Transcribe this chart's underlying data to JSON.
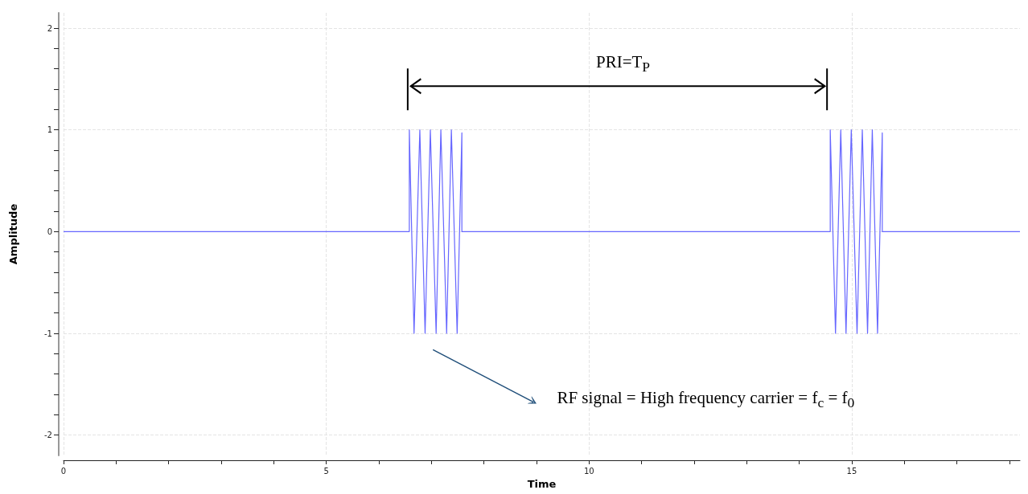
{
  "chart_data": {
    "type": "line",
    "xlabel": "Time",
    "ylabel": "Amplitude",
    "xlim": [
      0,
      18.2
    ],
    "xticks": [
      0,
      {
        "value": 1,
        "label": null
      },
      {
        "value": 2,
        "label": null
      },
      {
        "value": 3,
        "label": null
      },
      {
        "value": 4,
        "label": null
      },
      5,
      {
        "value": 6,
        "label": null
      },
      {
        "value": 7,
        "label": null
      },
      {
        "value": 8,
        "label": null
      },
      {
        "value": 9,
        "label": null
      },
      10,
      {
        "value": 11,
        "label": null
      },
      {
        "value": 12,
        "label": null
      },
      {
        "value": 13,
        "label": null
      },
      {
        "value": 14,
        "label": null
      },
      15,
      {
        "value": 16,
        "label": null
      },
      {
        "value": 17,
        "label": null
      },
      {
        "value": 18,
        "label": null
      }
    ],
    "ylim": [
      -2.2,
      2.15
    ],
    "yticks": [
      -2,
      {
        "value": -1.8,
        "label": null
      },
      {
        "value": -1.6,
        "label": null
      },
      {
        "value": -1.4,
        "label": null
      },
      {
        "value": -1.2,
        "label": null
      },
      -1,
      {
        "value": -0.8,
        "label": null
      },
      {
        "value": -0.6,
        "label": null
      },
      {
        "value": -0.4,
        "label": null
      },
      {
        "value": -0.2,
        "label": null
      },
      0,
      {
        "value": 0.2,
        "label": null
      },
      {
        "value": 0.4,
        "label": null
      },
      {
        "value": 0.6,
        "label": null
      },
      {
        "value": 0.8,
        "label": null
      },
      1,
      {
        "value": 1.2,
        "label": null
      },
      {
        "value": 1.4,
        "label": null
      },
      {
        "value": 1.6,
        "label": null
      },
      {
        "value": 1.8,
        "label": null
      },
      2
    ],
    "grid": true,
    "marker": "none",
    "line_style": "solid",
    "series": [
      {
        "color": "#6666ff",
        "x": [
          0,
          6.58,
          6.58,
          6.67,
          6.78,
          6.88,
          6.98,
          7.09,
          7.18,
          7.29,
          7.38,
          7.49,
          7.58,
          7.58,
          14.59,
          14.59,
          14.69,
          14.79,
          14.89,
          14.99,
          15.1,
          15.2,
          15.3,
          15.39,
          15.49,
          15.58,
          15.58,
          18.2
        ],
        "values": [
          0,
          0,
          1,
          -1,
          1,
          -1,
          1,
          -1,
          1,
          -1,
          1,
          -1,
          0.97,
          0,
          0,
          1,
          -1,
          1,
          -1,
          1,
          -1,
          1,
          -1,
          1,
          -1,
          0.97,
          0,
          0
        ]
      }
    ],
    "annotations": [
      "PRI=T$_{P}$",
      "RF signal = High frequency carrier = f$_{c}$ = f$_{0}$"
    ]
  }
}
